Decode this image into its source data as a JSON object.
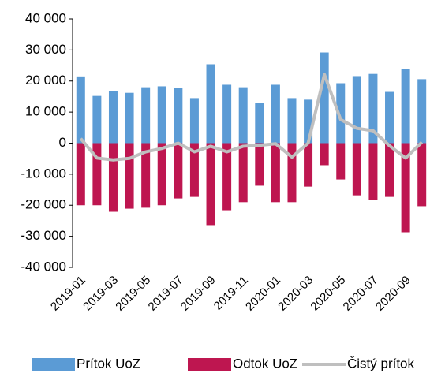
{
  "chart_data": {
    "type": "bar",
    "categories": [
      "2019-01",
      null,
      "2019-03",
      null,
      "2019-05",
      null,
      "2019-07",
      null,
      "2019-09",
      null,
      "2019-11",
      null,
      "2020-01",
      null,
      "2020-03",
      null,
      "2020-05",
      null,
      "2020-07",
      null,
      "2020-09",
      null
    ],
    "series": [
      {
        "name": "Prítok UoZ",
        "color": "#5b9bd5",
        "type": "bar",
        "values": [
          21500,
          15200,
          16700,
          16200,
          18000,
          18300,
          17800,
          14500,
          25400,
          18800,
          18000,
          13000,
          18800,
          14500,
          14000,
          29200,
          19300,
          21600,
          22300,
          16500,
          23900,
          20600
        ]
      },
      {
        "name": "Odtok UoZ",
        "color": "#be1650",
        "type": "bar",
        "values": [
          -20000,
          -20000,
          -22100,
          -21100,
          -20800,
          -20000,
          -17800,
          -17300,
          -26400,
          -21600,
          -19000,
          -13700,
          -19000,
          -19000,
          -14000,
          -7100,
          -11700,
          -16800,
          -18300,
          -17300,
          -28700,
          -20300
        ]
      },
      {
        "name": "Čistý prítok",
        "color": "#bfbfbf",
        "type": "line",
        "values": [
          1500,
          -4800,
          -5400,
          -4900,
          -2800,
          -1700,
          0,
          -2800,
          -1000,
          -2800,
          -1000,
          -700,
          -200,
          -4500,
          0,
          22100,
          7600,
          4800,
          4000,
          -800,
          -4800,
          300
        ]
      }
    ],
    "ylim": [
      -40000,
      40000
    ],
    "yticks": [
      {
        "value": 40000,
        "label": "40 000"
      },
      {
        "value": 30000,
        "label": "30 000"
      },
      {
        "value": 20000,
        "label": "20 000"
      },
      {
        "value": 10000,
        "label": "10 000"
      },
      0,
      {
        "value": -10000,
        "label": "-10 000"
      },
      {
        "value": -20000,
        "label": "-20 000"
      },
      {
        "value": -30000,
        "label": "-30 000"
      },
      {
        "value": -40000,
        "label": "-40 000"
      }
    ],
    "legend": "bottom"
  }
}
